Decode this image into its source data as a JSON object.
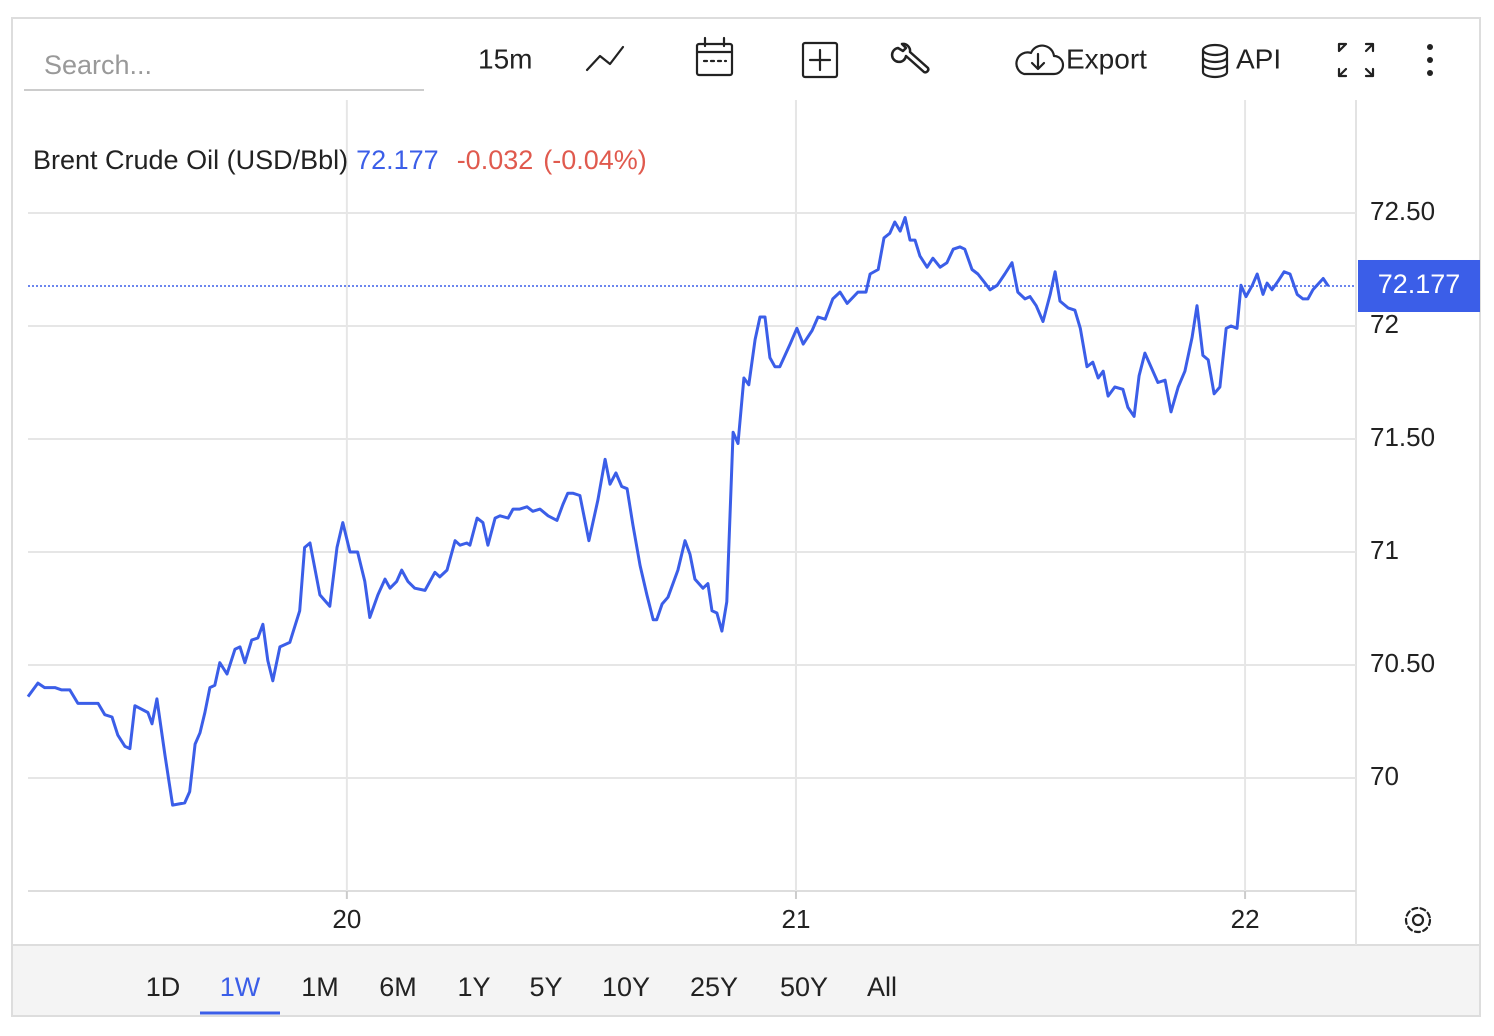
{
  "toolbar": {
    "search_placeholder": "Search...",
    "interval": "15m",
    "export": "Export",
    "api": "API"
  },
  "ranges": {
    "items": [
      "1D",
      "1W",
      "1M",
      "6M",
      "1Y",
      "5Y",
      "10Y",
      "25Y",
      "50Y",
      "All"
    ],
    "selected": "1W"
  },
  "chart_data": {
    "type": "line",
    "title": "Brent Crude Oil (USD/Bbl)",
    "last_value": 72.177,
    "change": -0.032,
    "change_percent": "(-0.04%)",
    "color": "#3b5ee8",
    "grid": true,
    "xlim": [
      19.29,
      22.247
    ],
    "xticks": [
      20,
      21,
      22
    ],
    "ylim": [
      69.5,
      73.0
    ],
    "yticks": [
      70,
      {
        "value": 70.5,
        "label": "70.50"
      },
      71,
      {
        "value": 71.5,
        "label": "71.50"
      },
      72,
      {
        "value": 72.5,
        "label": "72.50"
      }
    ],
    "x": [
      19.29,
      19.312,
      19.327,
      19.35,
      19.365,
      19.383,
      19.401,
      19.428,
      19.446,
      19.461,
      19.477,
      19.49,
      19.506,
      19.517,
      19.528,
      19.557,
      19.566,
      19.577,
      19.595,
      19.612,
      19.639,
      19.65,
      19.662,
      19.673,
      19.684,
      19.695,
      19.706,
      19.717,
      19.733,
      19.751,
      19.762,
      19.773,
      19.788,
      19.802,
      19.813,
      19.824,
      19.835,
      19.851,
      19.873,
      19.895,
      19.906,
      19.918,
      19.94,
      19.962,
      19.978,
      19.991,
      20.007,
      20.024,
      20.04,
      20.051,
      20.069,
      20.085,
      20.096,
      20.111,
      20.122,
      20.136,
      20.151,
      20.174,
      20.196,
      20.207,
      20.223,
      20.241,
      20.252,
      20.267,
      20.274,
      20.29,
      20.303,
      20.314,
      20.33,
      20.341,
      20.359,
      20.37,
      20.385,
      20.401,
      20.414,
      20.43,
      20.448,
      20.468,
      20.481,
      20.492,
      20.503,
      20.519,
      20.539,
      20.559,
      20.575,
      20.586,
      20.599,
      20.612,
      20.624,
      20.637,
      20.653,
      20.668,
      20.682,
      20.69,
      20.702,
      20.715,
      20.737,
      20.753,
      20.764,
      20.775,
      20.793,
      20.804,
      20.813,
      20.824,
      20.835,
      20.846,
      20.86,
      20.871,
      20.884,
      20.895,
      20.909,
      20.92,
      20.931,
      20.942,
      20.953,
      20.964,
      20.987,
      21.002,
      21.016,
      21.036,
      21.049,
      21.065,
      21.082,
      21.098,
      21.114,
      21.138,
      21.156,
      21.165,
      21.183,
      21.196,
      21.209,
      21.22,
      21.232,
      21.243,
      21.254,
      21.265,
      21.276,
      21.292,
      21.305,
      21.321,
      21.336,
      21.35,
      21.365,
      21.376,
      21.392,
      21.405,
      21.421,
      21.432,
      21.448,
      21.465,
      21.481,
      21.494,
      21.51,
      21.521,
      21.535,
      21.55,
      21.566,
      21.577,
      21.588,
      21.606,
      21.621,
      21.633,
      21.648,
      21.661,
      21.673,
      21.684,
      21.695,
      21.71,
      21.728,
      21.739,
      21.753,
      21.764,
      21.777,
      21.788,
      21.806,
      21.822,
      21.835,
      21.851,
      21.866,
      21.882,
      21.893,
      21.906,
      21.918,
      21.931,
      21.944,
      21.958,
      21.969,
      21.982,
      21.991,
      22.002,
      22.016,
      22.027,
      22.04,
      22.049,
      22.06,
      22.074,
      22.087,
      22.1,
      22.116,
      22.129,
      22.14,
      22.151,
      22.174,
      22.185
    ],
    "values": [
      70.36,
      70.42,
      70.4,
      70.4,
      70.39,
      70.39,
      70.33,
      70.33,
      70.33,
      70.28,
      70.27,
      70.19,
      70.14,
      70.13,
      70.32,
      70.29,
      70.24,
      70.35,
      70.1,
      69.88,
      69.89,
      69.94,
      70.15,
      70.2,
      70.29,
      70.4,
      70.41,
      70.51,
      70.46,
      70.57,
      70.58,
      70.51,
      70.61,
      70.62,
      70.68,
      70.52,
      70.43,
      70.58,
      70.6,
      70.74,
      71.02,
      71.04,
      70.81,
      70.76,
      71.02,
      71.13,
      71.0,
      71.0,
      70.87,
      70.71,
      70.81,
      70.88,
      70.84,
      70.87,
      70.92,
      70.87,
      70.84,
      70.83,
      70.91,
      70.89,
      70.92,
      71.05,
      71.03,
      71.04,
      71.03,
      71.15,
      71.13,
      71.03,
      71.15,
      71.16,
      71.15,
      71.19,
      71.19,
      71.2,
      71.18,
      71.19,
      71.16,
      71.14,
      71.21,
      71.26,
      71.26,
      71.25,
      71.05,
      71.23,
      71.41,
      71.3,
      71.35,
      71.29,
      71.28,
      71.12,
      70.94,
      70.81,
      70.7,
      70.7,
      70.77,
      70.8,
      70.92,
      71.05,
      70.99,
      70.88,
      70.84,
      70.86,
      70.74,
      70.73,
      70.65,
      70.78,
      71.53,
      71.48,
      71.77,
      71.74,
      71.94,
      72.04,
      72.04,
      71.86,
      71.82,
      71.82,
      71.92,
      71.99,
      71.92,
      71.98,
      72.04,
      72.03,
      72.12,
      72.15,
      72.1,
      72.15,
      72.15,
      72.23,
      72.25,
      72.39,
      72.41,
      72.46,
      72.42,
      72.48,
      72.38,
      72.38,
      72.31,
      72.26,
      72.3,
      72.26,
      72.28,
      72.34,
      72.35,
      72.34,
      72.25,
      72.23,
      72.19,
      72.16,
      72.18,
      72.23,
      72.28,
      72.15,
      72.12,
      72.13,
      72.09,
      72.02,
      72.14,
      72.24,
      72.11,
      72.08,
      72.07,
      71.99,
      71.82,
      71.84,
      71.77,
      71.8,
      71.69,
      71.73,
      71.72,
      71.64,
      71.6,
      71.78,
      71.88,
      71.83,
      71.75,
      71.76,
      71.62,
      71.73,
      71.8,
      71.95,
      72.09,
      71.87,
      71.85,
      71.7,
      71.73,
      71.99,
      72.0,
      71.99,
      72.18,
      72.13,
      72.18,
      72.23,
      72.14,
      72.19,
      72.16,
      72.2,
      72.24,
      72.23,
      72.14,
      72.12,
      72.12,
      72.16,
      72.21,
      72.177
    ]
  }
}
